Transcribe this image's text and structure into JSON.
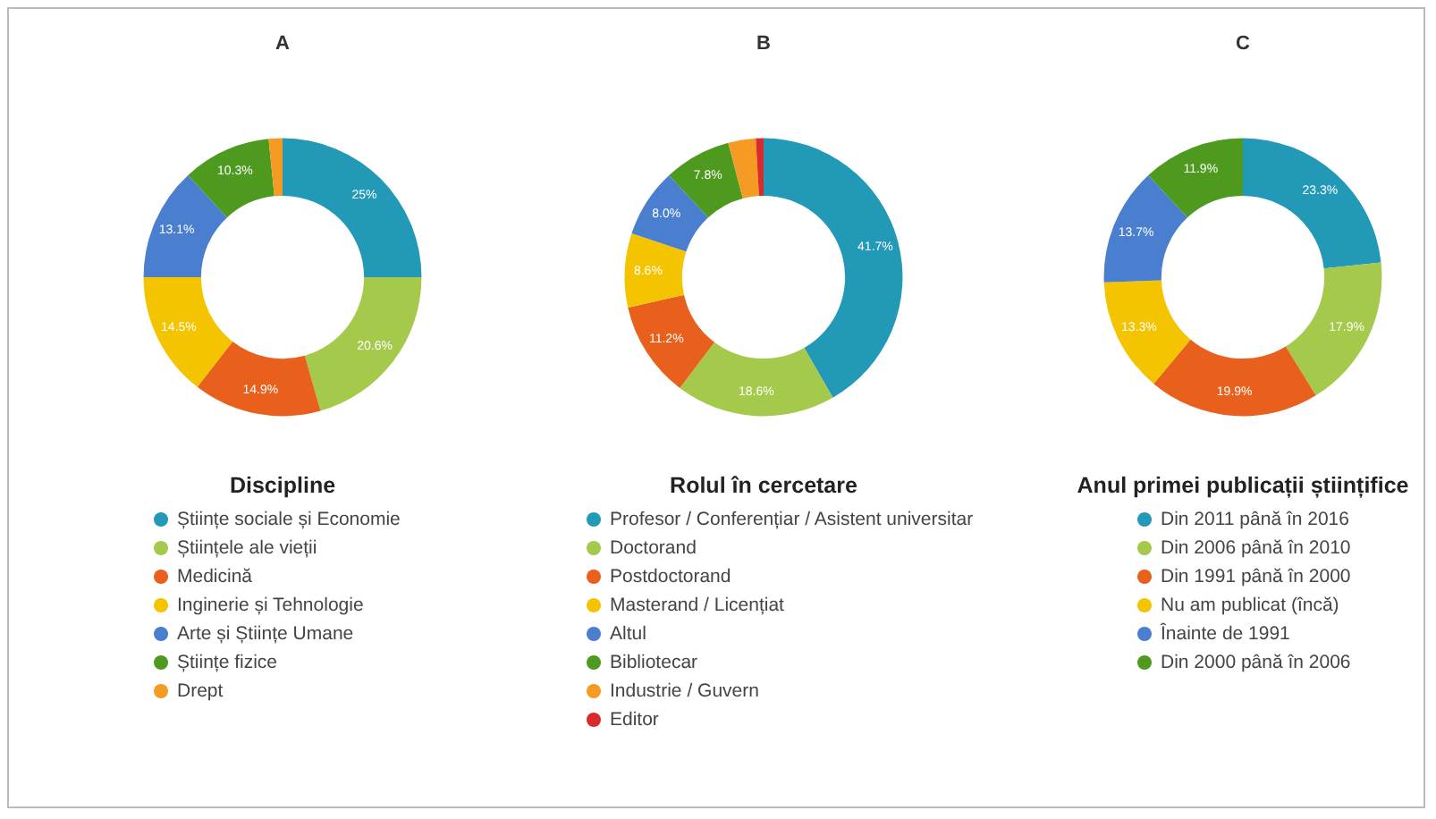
{
  "chart_data": [
    {
      "type": "donut",
      "title": "A",
      "legend_title": "Discipline",
      "legend": "bottom",
      "categories": [
        "Științe sociale și Economie",
        "Științele ale vieții",
        "Medicină",
        "Inginerie și Tehnologie",
        "Arte și Științe Umane",
        "Științe fizice",
        "Drept"
      ],
      "values": [
        25,
        20.6,
        14.9,
        14.5,
        13.1,
        10.3,
        1.6
      ],
      "value_labels": [
        "25%",
        "20.6%",
        "14.9%",
        "14.5%",
        "13.1%",
        "10.3%",
        null
      ],
      "colors": [
        "#2399b8",
        "#a5c94a",
        "#e8601c",
        "#f5c400",
        "#4a7fcf",
        "#4e9a1e",
        "#f59a23"
      ]
    },
    {
      "type": "donut",
      "title": "B",
      "legend_title": "Rolul în cercetare",
      "legend": "bottom",
      "categories": [
        "Profesor / Conferențiar / Asistent universitar",
        "Doctorand",
        "Postdoctorand",
        "Masterand / Licențiat",
        "Altul",
        "Bibliotecar",
        "Industrie / Guvern",
        "Editor"
      ],
      "values": [
        41.7,
        18.6,
        11.2,
        8.6,
        8.0,
        7.8,
        3.2,
        0.9
      ],
      "value_labels": [
        "41.7%",
        "18.6%",
        "11.2%",
        "8.6%",
        "8.0%",
        "7.8%",
        null,
        null
      ],
      "colors": [
        "#2399b8",
        "#a5c94a",
        "#e8601c",
        "#f5c400",
        "#4a7fcf",
        "#4e9a1e",
        "#f59a23",
        "#d92b2b"
      ]
    },
    {
      "type": "donut",
      "title": "C",
      "legend_title": "Anul primei publicații științifice",
      "legend": "bottom",
      "categories": [
        "Din 2011 până în 2016",
        "Din 2006 până în 2010",
        "Din 1991 până în 2000",
        "Nu am publicat (încă)",
        "Înainte de 1991",
        "Din 2000 până în 2006"
      ],
      "values": [
        23.3,
        17.9,
        19.9,
        13.3,
        13.7,
        11.9
      ],
      "value_labels": [
        "23.3%",
        "17.9%",
        "19.9%",
        "13.3%",
        "13.7%",
        "11.9%"
      ],
      "colors": [
        "#2399b8",
        "#a5c94a",
        "#e8601c",
        "#f5c400",
        "#4a7fcf",
        "#4e9a1e"
      ]
    }
  ]
}
